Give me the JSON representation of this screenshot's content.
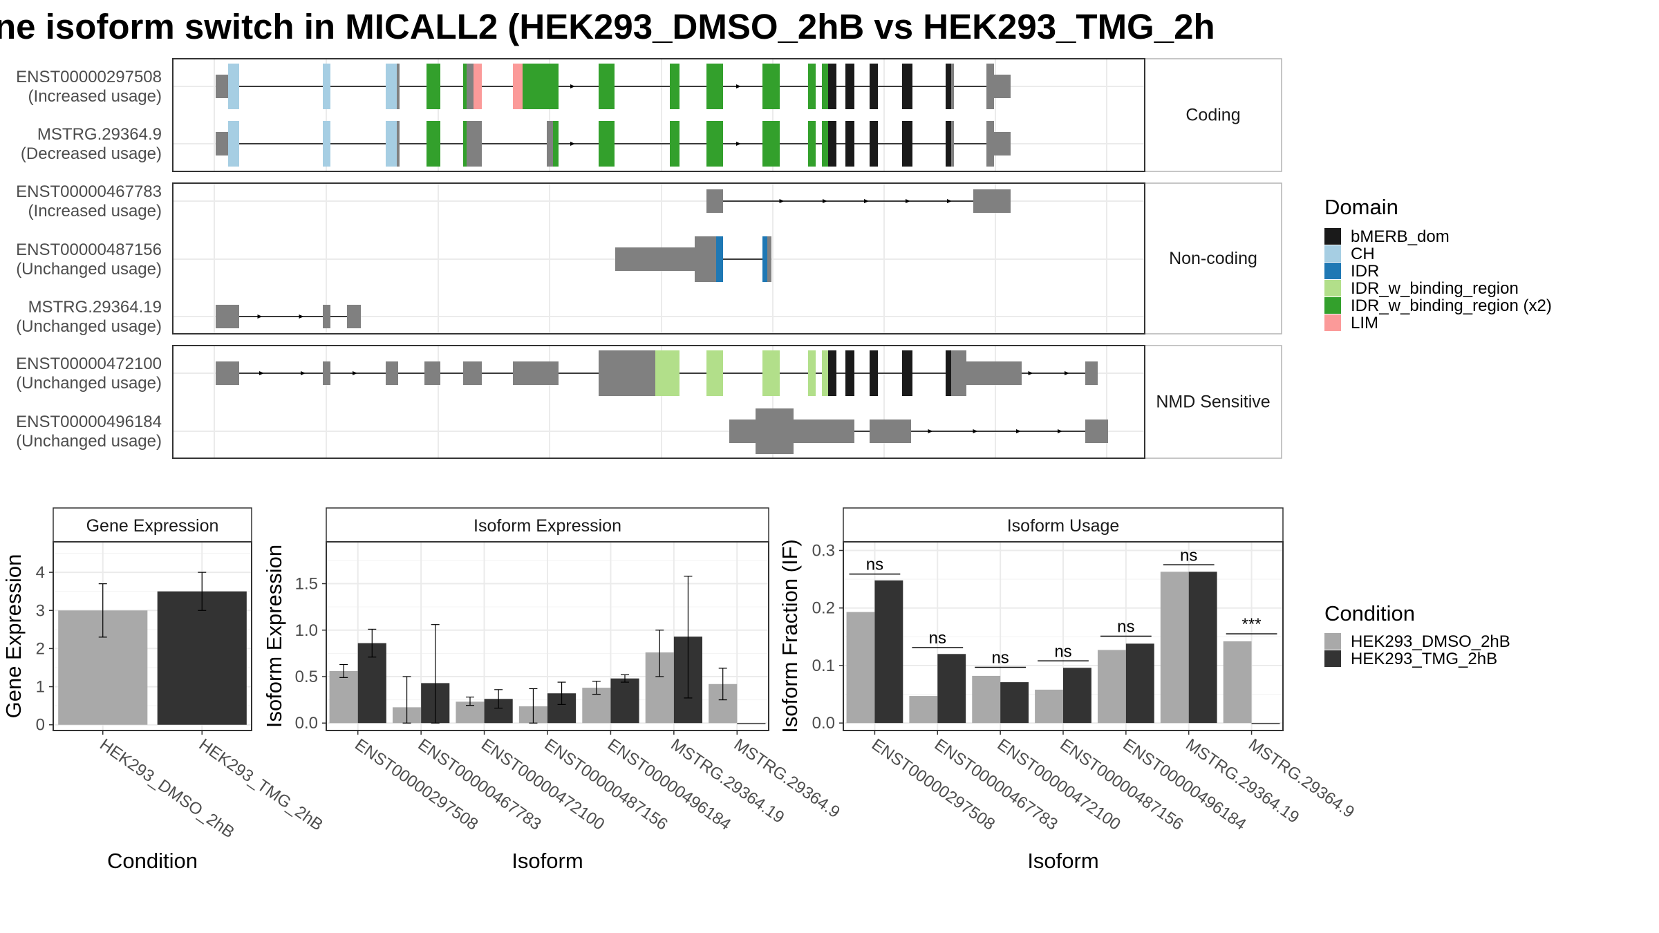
{
  "title": "ne isoform switch in MICALL2 (HEK293_DMSO_2hB vs HEK293_TMG_2h",
  "colors": {
    "bMERB_dom": "#1a1a1a",
    "CH": "#a6cee3",
    "IDR": "#1f78b4",
    "IDR_w_binding_region": "#b2df8a",
    "IDR_w_binding_region (x2)": "#33a02c",
    "LIM": "#fb9a99",
    "noncoding": "#808080",
    "dmso": "#a9a9a9",
    "tmg": "#333333"
  },
  "structure": {
    "facets": [
      {
        "label": "Coding",
        "rows": [
          {
            "id": "ENST00000297508",
            "usage": "(Increased usage)"
          },
          {
            "id": "MSTRG.29364.9",
            "usage": "(Decreased usage)"
          }
        ]
      },
      {
        "label": "Non-coding",
        "rows": [
          {
            "id": "ENST00000467783",
            "usage": "(Increased usage)"
          },
          {
            "id": "ENST00000487156",
            "usage": "(Unchanged usage)"
          },
          {
            "id": "MSTRG.29364.19",
            "usage": "(Unchanged usage)"
          }
        ]
      },
      {
        "label": "NMD Sensitive",
        "rows": [
          {
            "id": "ENST00000472100",
            "usage": "(Unchanged usage)"
          },
          {
            "id": "ENST00000496184",
            "usage": "(Unchanged usage)"
          }
        ]
      }
    ]
  },
  "domain_legend": {
    "title": "Domain",
    "items": [
      "bMERB_dom",
      "CH",
      "IDR",
      "IDR_w_binding_region",
      "IDR_w_binding_region (x2)",
      "LIM"
    ]
  },
  "condition_legend": {
    "title": "Condition",
    "items": [
      "HEK293_DMSO_2hB",
      "HEK293_TMG_2hB"
    ]
  },
  "chart_data": [
    {
      "type": "bar",
      "title": "Gene Expression",
      "xlabel": "Condition",
      "ylabel": "Gene Expression",
      "categories": [
        "HEK293_DMSO_2hB",
        "HEK293_TMG_2hB"
      ],
      "values": [
        3.0,
        3.5
      ],
      "err_low": [
        2.3,
        3.0
      ],
      "err_high": [
        3.7,
        4.0
      ],
      "ylim": [
        -0.15,
        4.8
      ],
      "yticks": [
        "0",
        "1",
        "2",
        "3",
        "4"
      ]
    },
    {
      "type": "bar",
      "title": "Isoform Expression",
      "xlabel": "Isoform",
      "ylabel": "Isoform Expression",
      "categories": [
        "ENST00000297508",
        "ENST00000467783",
        "ENST00000472100",
        "ENST00000487156",
        "ENST00000496184",
        "MSTRG.29364.19",
        "MSTRG.29364.9"
      ],
      "series": [
        {
          "name": "HEK293_DMSO_2hB",
          "values": [
            0.56,
            0.17,
            0.23,
            0.18,
            0.38,
            0.76,
            0.42
          ],
          "err_low": [
            0.49,
            0.0,
            0.19,
            0.0,
            0.31,
            0.5,
            0.25
          ],
          "err_high": [
            0.63,
            0.5,
            0.28,
            0.37,
            0.45,
            1.0,
            0.59
          ]
        },
        {
          "name": "HEK293_TMG_2hB",
          "values": [
            0.86,
            0.43,
            0.26,
            0.32,
            0.48,
            0.93,
            0.0
          ],
          "err_low": [
            0.71,
            0.0,
            0.16,
            0.2,
            0.44,
            0.27,
            0.0
          ],
          "err_high": [
            1.01,
            1.06,
            0.36,
            0.44,
            0.52,
            1.58,
            0.0
          ]
        }
      ],
      "ylim": [
        -0.08,
        1.95
      ],
      "yticks": [
        "0.0",
        "0.5",
        "1.0",
        "1.5"
      ]
    },
    {
      "type": "bar",
      "title": "Isoform Usage",
      "xlabel": "Isoform",
      "ylabel": "Isoform Fraction (IF)",
      "categories": [
        "ENST00000297508",
        "ENST00000467783",
        "ENST00000472100",
        "ENST00000487156",
        "ENST00000496184",
        "MSTRG.29364.19",
        "MSTRG.29364.9"
      ],
      "series": [
        {
          "name": "HEK293_DMSO_2hB",
          "values": [
            0.193,
            0.047,
            0.082,
            0.058,
            0.127,
            0.263,
            0.142
          ]
        },
        {
          "name": "HEK293_TMG_2hB",
          "values": [
            0.248,
            0.12,
            0.071,
            0.096,
            0.138,
            0.263,
            0.0
          ]
        }
      ],
      "significance": [
        "ns",
        "ns",
        "ns",
        "ns",
        "ns",
        "ns",
        "***"
      ],
      "sig_height": [
        0.259,
        0.131,
        0.097,
        0.108,
        0.151,
        0.275,
        0.155
      ],
      "ylim": [
        -0.013,
        0.315
      ],
      "yticks": [
        "0.0",
        "0.1",
        "0.2",
        "0.3"
      ]
    }
  ]
}
